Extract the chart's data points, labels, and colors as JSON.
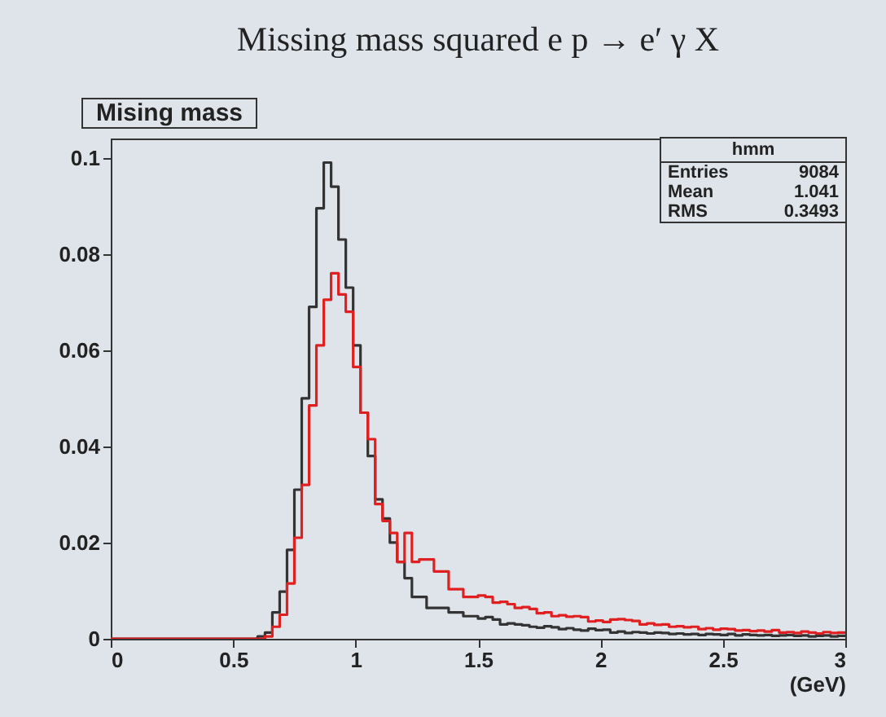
{
  "chart_data": {
    "type": "histogram",
    "title": "Missing mass squared e p → e′ γ X",
    "subtitle": "Mising mass",
    "xlabel": "(GeV)",
    "annotations": [
      "hmm",
      "Entries 9084",
      "Mean 1.041",
      "RMS 0.3493"
    ],
    "bins": [
      0,
      0.03,
      0.06,
      0.09,
      0.12,
      0.15,
      0.18,
      0.21,
      0.24,
      0.27,
      0.3,
      0.33,
      0.36,
      0.39,
      0.42,
      0.45,
      0.48,
      0.51,
      0.54,
      0.57,
      0.6,
      0.63,
      0.66,
      0.69,
      0.72,
      0.75,
      0.78,
      0.81,
      0.84,
      0.87,
      0.9,
      0.93,
      0.96,
      0.99,
      1.02,
      1.05,
      1.08,
      1.11,
      1.14,
      1.17,
      1.2,
      1.23,
      1.26,
      1.29,
      1.32,
      1.35,
      1.38,
      1.41,
      1.44,
      1.47,
      1.5,
      1.53,
      1.56,
      1.59,
      1.62,
      1.65,
      1.68,
      1.71,
      1.74,
      1.77,
      1.8,
      1.83,
      1.86,
      1.89,
      1.92,
      1.95,
      1.98,
      2.01,
      2.04,
      2.07,
      2.1,
      2.13,
      2.16,
      2.19,
      2.22,
      2.25,
      2.28,
      2.31,
      2.34,
      2.37,
      2.4,
      2.43,
      2.46,
      2.49,
      2.52,
      2.55,
      2.58,
      2.61,
      2.64,
      2.67,
      2.7,
      2.73,
      2.76,
      2.79,
      2.82,
      2.85,
      2.88,
      2.91,
      2.94,
      2.97,
      3
    ],
    "series": [
      {
        "color": "#333333",
        "values": [
          0,
          0,
          0,
          0,
          0,
          0,
          0,
          0,
          0,
          0,
          0,
          0,
          0,
          0,
          0,
          0,
          0,
          0,
          0,
          0,
          0.0005,
          0.0013,
          0.0055,
          0.0098,
          0.0185,
          0.031,
          0.05,
          0.069,
          0.0895,
          0.099,
          0.094,
          0.083,
          0.073,
          0.061,
          0.047,
          0.038,
          0.029,
          0.025,
          0.02,
          0.016,
          0.0126,
          0.0087,
          0.0087,
          0.0064,
          0.0064,
          0.0064,
          0.0055,
          0.0055,
          0.0047,
          0.0047,
          0.0042,
          0.0045,
          0.004,
          0.003,
          0.0032,
          0.003,
          0.0028,
          0.0025,
          0.0023,
          0.0026,
          0.0024,
          0.002,
          0.0022,
          0.0019,
          0.0017,
          0.0021,
          0.0018,
          0.0019,
          0.0013,
          0.0015,
          0.0012,
          0.0014,
          0.0013,
          0.0011,
          0.0013,
          0.0012,
          0.001,
          0.0011,
          0.0009,
          0.001,
          0.0008,
          0.001,
          0.0009,
          0.0008,
          0.001,
          0.0007,
          0.0009,
          0.0008,
          0.0007,
          0.0008,
          0.0006,
          0.0007,
          0.0008,
          0.0006,
          0.0007,
          0.0005,
          0.0006,
          0.0007,
          0.0005,
          0.0006
        ]
      },
      {
        "color": "#e02020",
        "values": [
          0,
          0,
          0,
          0,
          0,
          0,
          0,
          0,
          0,
          0,
          0,
          0,
          0,
          0,
          0,
          0,
          0,
          0,
          0,
          0,
          0,
          0.0005,
          0.0025,
          0.005,
          0.0115,
          0.021,
          0.032,
          0.0485,
          0.061,
          0.0705,
          0.076,
          0.0716,
          0.068,
          0.0565,
          0.047,
          0.0415,
          0.028,
          0.0245,
          0.022,
          0.016,
          0.022,
          0.016,
          0.0165,
          0.0165,
          0.014,
          0.014,
          0.0103,
          0.0103,
          0.0087,
          0.0087,
          0.009,
          0.0087,
          0.0075,
          0.0077,
          0.0072,
          0.0064,
          0.0066,
          0.0062,
          0.0053,
          0.0055,
          0.0047,
          0.0049,
          0.0046,
          0.0047,
          0.0045,
          0.0036,
          0.0038,
          0.0035,
          0.004,
          0.0041,
          0.0039,
          0.0037,
          0.003,
          0.0032,
          0.0029,
          0.003,
          0.0025,
          0.0026,
          0.0024,
          0.0025,
          0.002,
          0.0022,
          0.0019,
          0.0021,
          0.002,
          0.0017,
          0.0018,
          0.0016,
          0.0017,
          0.0015,
          0.0018,
          0.0013,
          0.0014,
          0.0012,
          0.0015,
          0.0013,
          0.0011,
          0.0014,
          0.0012,
          0.0013
        ]
      }
    ],
    "xlim": [
      0,
      3
    ],
    "ylim": [
      0,
      0.104
    ],
    "xticks": [
      0,
      0.5,
      1,
      1.5,
      2,
      2.5,
      3
    ],
    "yticks": [
      0,
      0.02,
      0.04,
      0.06,
      0.08,
      0.1
    ]
  }
}
